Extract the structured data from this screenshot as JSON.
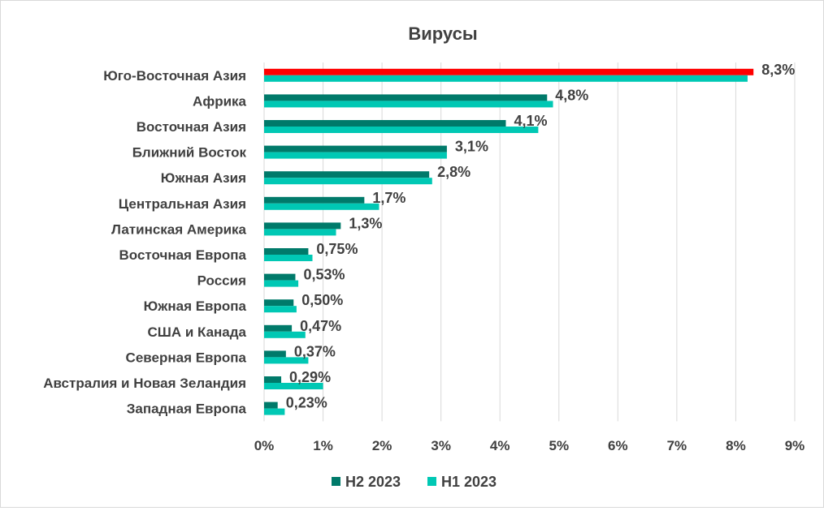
{
  "chart_data": {
    "type": "bar",
    "orientation": "horizontal",
    "title": "Вирусы",
    "categories": [
      "Юго-Восточная Азия",
      "Африка",
      "Восточная Азия",
      "Ближний Восток",
      "Южная Азия",
      "Центральная Азия",
      "Латинская Америка",
      "Восточная Европа",
      "Россия",
      "Южная Европа",
      "США и Канада",
      "Северная Европа",
      "Австралия и Новая Зеландия",
      "Западная Европа"
    ],
    "series": [
      {
        "name": "H2 2023",
        "color": "#007a6a",
        "values": [
          8.3,
          4.8,
          4.1,
          3.1,
          2.8,
          1.7,
          1.3,
          0.75,
          0.53,
          0.5,
          0.47,
          0.37,
          0.29,
          0.23
        ],
        "data_labels": [
          "8,3%",
          "4,8%",
          "4,1%",
          "3,1%",
          "2,8%",
          "1,7%",
          "1,3%",
          "0,75%",
          "0,53%",
          "0,50%",
          "0,47%",
          "0,37%",
          "0,29%",
          "0,23%"
        ],
        "highlight": {
          "index": 0,
          "color": "#ff0000"
        }
      },
      {
        "name": "H1 2023",
        "color": "#00c8b4",
        "values": [
          8.2,
          4.9,
          4.65,
          3.1,
          2.85,
          1.95,
          1.22,
          0.82,
          0.58,
          0.55,
          0.7,
          0.75,
          1.0,
          0.35
        ]
      }
    ],
    "xlim": [
      0,
      9
    ],
    "xticks": [
      "0%",
      "1%",
      "2%",
      "3%",
      "4%",
      "5%",
      "6%",
      "7%",
      "8%",
      "9%"
    ],
    "grid": true,
    "legend": "bottom"
  }
}
